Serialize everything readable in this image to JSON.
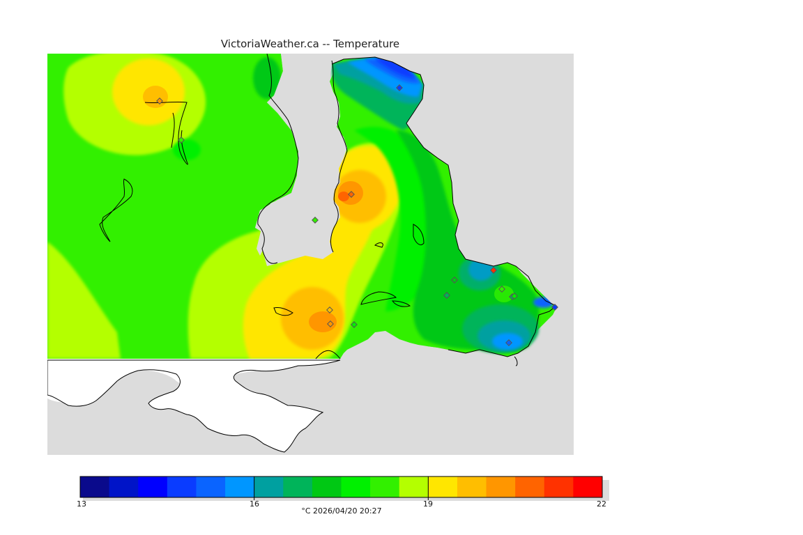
{
  "title": "VictoriaWeather.ca -- Temperature",
  "legend": {
    "min": 13,
    "max": 22,
    "ticks": [
      "13",
      "16",
      "19",
      "22"
    ],
    "colors": [
      "#0a0a8c",
      "#0014c8",
      "#0000ff",
      "#0a3cff",
      "#0a64ff",
      "#0096ff",
      "#00a0a0",
      "#00b45a",
      "#00c814",
      "#00f000",
      "#32f000",
      "#b4ff00",
      "#ffe600",
      "#ffbe00",
      "#ff9600",
      "#ff6400",
      "#ff3200",
      "#ff0000"
    ],
    "caption": "°C  2026/04/20 20:27"
  },
  "map": {
    "ocean_color": "#dcdcdc",
    "land_outside_color": "#ffffff",
    "stations": [
      {
        "temp": 20.5
      },
      {
        "temp": 18.0
      },
      {
        "temp": 14.3
      },
      {
        "temp": 20.8
      },
      {
        "temp": 18.2
      },
      {
        "temp": 20.6
      },
      {
        "temp": 20.4
      },
      {
        "temp": 17.5
      },
      {
        "temp": 14.9
      },
      {
        "temp": 16.8
      },
      {
        "temp": 16.9
      },
      {
        "temp": 16.2
      },
      {
        "temp": 16.0
      },
      {
        "temp": 15.1
      },
      {
        "temp": 14.2
      },
      {
        "temp": 17.4
      }
    ]
  }
}
